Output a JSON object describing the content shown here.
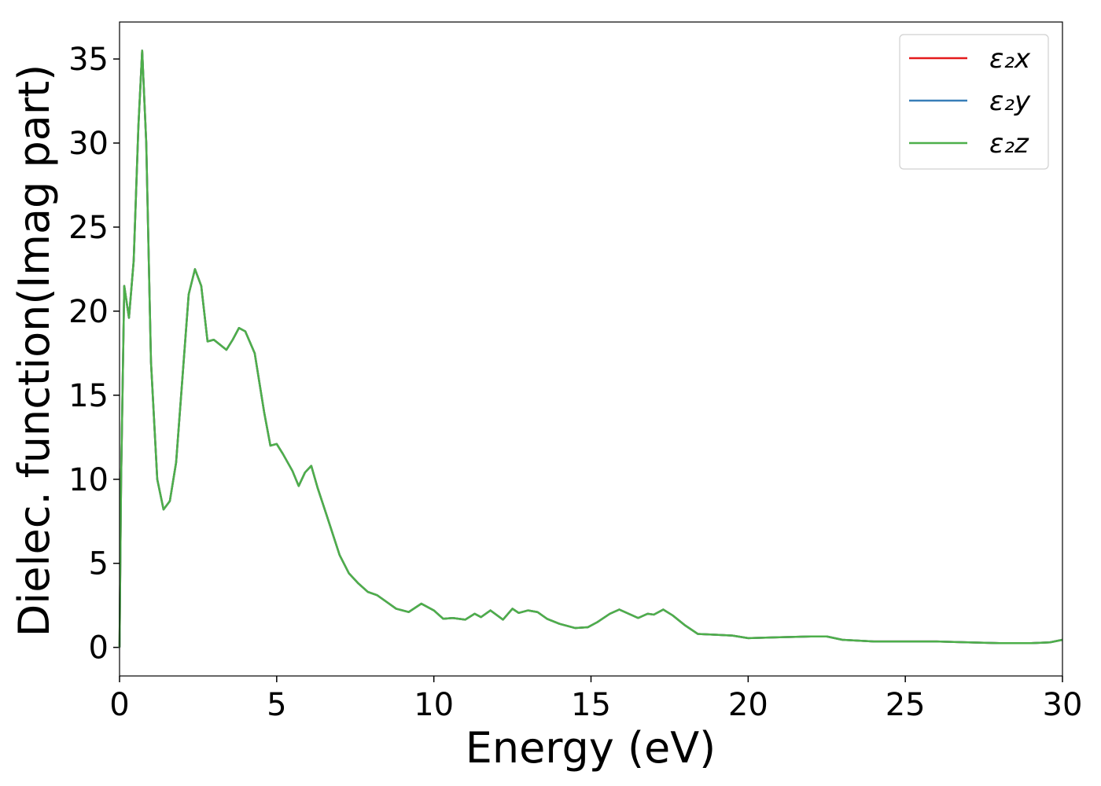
{
  "chart_data": {
    "type": "line",
    "xlabel": "Energy (eV)",
    "ylabel": "Dielec. function(Imag part)",
    "x": [
      0,
      0.05,
      0.15,
      0.3,
      0.45,
      0.6,
      0.72,
      0.85,
      1.0,
      1.2,
      1.4,
      1.6,
      1.8,
      2.0,
      2.2,
      2.4,
      2.6,
      2.8,
      3.0,
      3.2,
      3.4,
      3.6,
      3.8,
      4.0,
      4.3,
      4.6,
      4.8,
      5.0,
      5.2,
      5.5,
      5.7,
      5.9,
      6.1,
      6.3,
      6.6,
      7.0,
      7.3,
      7.6,
      7.9,
      8.2,
      8.5,
      8.8,
      9.2,
      9.6,
      10.0,
      10.3,
      10.6,
      11.0,
      11.3,
      11.5,
      11.8,
      12.2,
      12.5,
      12.7,
      13.0,
      13.3,
      13.6,
      14.0,
      14.5,
      14.9,
      15.2,
      15.6,
      15.9,
      16.2,
      16.5,
      16.8,
      17.0,
      17.3,
      17.6,
      18.0,
      18.4,
      19.0,
      19.5,
      20.0,
      21.0,
      22.0,
      22.5,
      23.0,
      24.0,
      25.0,
      26.0,
      27.0,
      28.0,
      29.0,
      29.6,
      30.0
    ],
    "series": [
      {
        "name": "ε₂x",
        "color": "#e41a1c",
        "values": [
          0,
          10,
          21.5,
          19.6,
          23,
          31,
          35.5,
          30,
          17,
          10,
          8.2,
          8.7,
          11,
          16,
          21,
          22.5,
          21.5,
          18.2,
          18.3,
          18,
          17.7,
          18.3,
          19.0,
          18.8,
          17.5,
          14,
          12,
          12.1,
          11.5,
          10.5,
          9.6,
          10.4,
          10.8,
          9.5,
          7.8,
          5.5,
          4.4,
          3.8,
          3.3,
          3.1,
          2.7,
          2.3,
          2.1,
          2.6,
          2.2,
          1.7,
          1.75,
          1.65,
          2.0,
          1.8,
          2.2,
          1.65,
          2.3,
          2.05,
          2.2,
          2.1,
          1.7,
          1.4,
          1.15,
          1.2,
          1.5,
          2.0,
          2.25,
          2.0,
          1.75,
          2.0,
          1.95,
          2.25,
          1.9,
          1.3,
          0.8,
          0.75,
          0.7,
          0.55,
          0.6,
          0.65,
          0.65,
          0.45,
          0.35,
          0.35,
          0.35,
          0.3,
          0.25,
          0.25,
          0.3,
          0.45
        ]
      },
      {
        "name": "ε₂y",
        "color": "#377eb8",
        "values": [
          0,
          10,
          21.5,
          19.6,
          23,
          31,
          35.5,
          30,
          17,
          10,
          8.2,
          8.7,
          11,
          16,
          21,
          22.5,
          21.5,
          18.2,
          18.3,
          18,
          17.7,
          18.3,
          19.0,
          18.8,
          17.5,
          14,
          12,
          12.1,
          11.5,
          10.5,
          9.6,
          10.4,
          10.8,
          9.5,
          7.8,
          5.5,
          4.4,
          3.8,
          3.3,
          3.1,
          2.7,
          2.3,
          2.1,
          2.6,
          2.2,
          1.7,
          1.75,
          1.65,
          2.0,
          1.8,
          2.2,
          1.65,
          2.3,
          2.05,
          2.2,
          2.1,
          1.7,
          1.4,
          1.15,
          1.2,
          1.5,
          2.0,
          2.25,
          2.0,
          1.75,
          2.0,
          1.95,
          2.25,
          1.9,
          1.3,
          0.8,
          0.75,
          0.7,
          0.55,
          0.6,
          0.65,
          0.65,
          0.45,
          0.35,
          0.35,
          0.35,
          0.3,
          0.25,
          0.25,
          0.3,
          0.45
        ]
      },
      {
        "name": "ε₂z",
        "color": "#4daf4a",
        "values": [
          0,
          10,
          21.5,
          19.6,
          23,
          31,
          35.5,
          30,
          17,
          10,
          8.2,
          8.7,
          11,
          16,
          21,
          22.5,
          21.5,
          18.2,
          18.3,
          18,
          17.7,
          18.3,
          19.0,
          18.8,
          17.5,
          14,
          12,
          12.1,
          11.5,
          10.5,
          9.6,
          10.4,
          10.8,
          9.5,
          7.8,
          5.5,
          4.4,
          3.8,
          3.3,
          3.1,
          2.7,
          2.3,
          2.1,
          2.6,
          2.2,
          1.7,
          1.75,
          1.65,
          2.0,
          1.8,
          2.2,
          1.65,
          2.3,
          2.05,
          2.2,
          2.1,
          1.7,
          1.4,
          1.15,
          1.2,
          1.5,
          2.0,
          2.25,
          2.0,
          1.75,
          2.0,
          1.95,
          2.25,
          1.9,
          1.3,
          0.8,
          0.75,
          0.7,
          0.55,
          0.6,
          0.65,
          0.65,
          0.45,
          0.35,
          0.35,
          0.35,
          0.3,
          0.25,
          0.25,
          0.3,
          0.45
        ]
      }
    ],
    "xlim": [
      0,
      30
    ],
    "xticks": [
      0,
      5,
      10,
      15,
      20,
      25,
      30
    ],
    "ylim": [
      -1.7,
      37.2
    ],
    "yticks": [
      0,
      5,
      10,
      15,
      20,
      25,
      30,
      35
    ],
    "legend": "upper right",
    "grid": false
  }
}
